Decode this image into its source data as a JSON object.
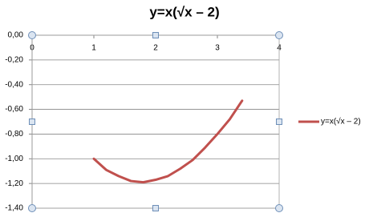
{
  "chart_data": {
    "type": "line",
    "title": "y=x(√x – 2)",
    "x": [
      1,
      1.2,
      1.4,
      1.6,
      1.8,
      2,
      2.2,
      2.4,
      2.6,
      2.8,
      3,
      3.2,
      3.4
    ],
    "series": [
      {
        "name": "y=x(√x – 2)",
        "color": "#c0504d",
        "values": [
          -1,
          -1.09,
          -1.14,
          -1.18,
          -1.19,
          -1.17,
          -1.14,
          -1.08,
          -1.01,
          -0.91,
          -0.8,
          -0.68,
          -0.53
        ]
      }
    ],
    "xlim": [
      0,
      4
    ],
    "xticks": [
      0,
      1,
      2,
      3,
      4
    ],
    "ylim": [
      -1.4,
      0
    ],
    "yticks": [
      {
        "value": 0,
        "label": "0,00"
      },
      {
        "value": -0.2,
        "label": "-0,20"
      },
      {
        "value": -0.4,
        "label": "-0,40"
      },
      {
        "value": -0.6,
        "label": "-0,60"
      },
      {
        "value": -0.8,
        "label": "-0,80"
      },
      {
        "value": -1,
        "label": "-1,00"
      },
      {
        "value": -1.2,
        "label": "-1,20"
      },
      {
        "value": -1.4,
        "label": "-1,40"
      }
    ],
    "grid": true,
    "legend": "right"
  }
}
